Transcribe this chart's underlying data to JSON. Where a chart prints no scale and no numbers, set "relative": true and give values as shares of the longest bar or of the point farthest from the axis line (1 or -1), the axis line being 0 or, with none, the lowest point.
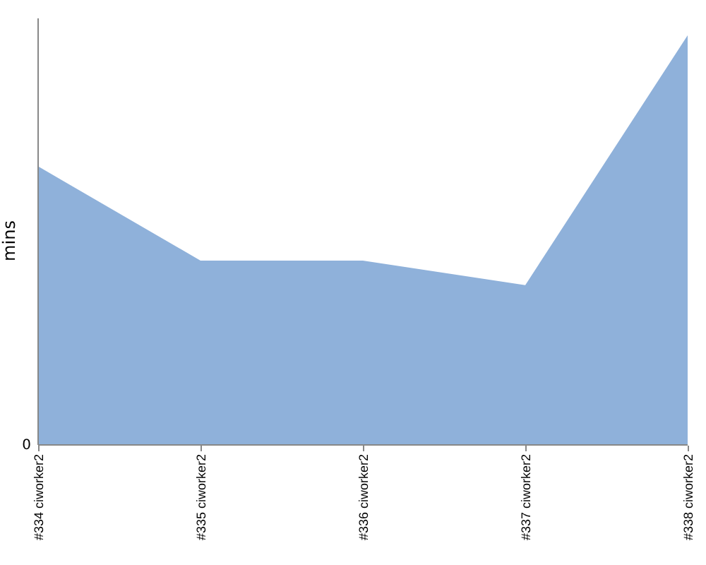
{
  "chart_data": {
    "type": "area",
    "relative": true,
    "ylabel": "mins",
    "categories": [
      "#334 ciworker2",
      "#335 ciworker2",
      "#336 ciworker2",
      "#337 ciworker2",
      "#338 ciworker2"
    ],
    "series": [
      {
        "color": "#8fb1da",
        "values": [
          0.68,
          0.45,
          0.45,
          0.39,
          1
        ]
      }
    ],
    "annotations": [
      "0"
    ]
  }
}
